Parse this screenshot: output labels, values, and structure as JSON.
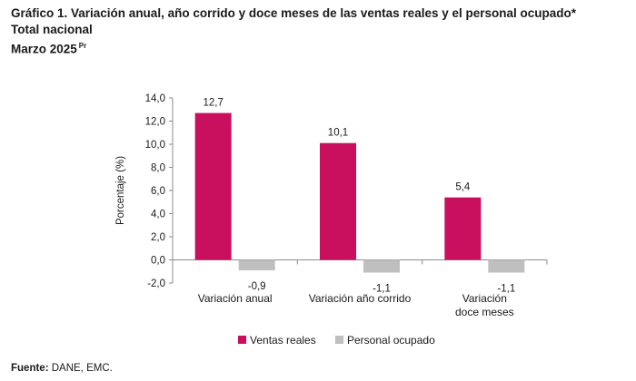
{
  "header": {
    "title": "Gráfico 1. Variación anual, año corrido y doce meses de las ventas reales y el personal ocupado*",
    "subtitle": "Total nacional",
    "period": "Marzo 2025",
    "period_sup": "Pr"
  },
  "footer": {
    "source_label": "Fuente:",
    "source_text": " DANE, EMC."
  },
  "chart_data": {
    "type": "bar",
    "categories": [
      [
        "Variación anual"
      ],
      [
        "Variación año corrido"
      ],
      [
        "Variación",
        "doce meses"
      ]
    ],
    "series": [
      {
        "name": "Ventas reales",
        "color": "#c8105e",
        "values": [
          12.7,
          10.1,
          5.4
        ],
        "labels": [
          "12,7",
          "10,1",
          "5,4"
        ]
      },
      {
        "name": "Personal ocupado",
        "color": "#bfbfbf",
        "values": [
          -0.9,
          -1.1,
          -1.1
        ],
        "labels": [
          "-0,9",
          "-1,1",
          "-1,1"
        ]
      }
    ],
    "ylabel": "Porcentaje (%)",
    "ylim": [
      -2.0,
      14.0
    ],
    "yticks": [
      14.0,
      12.0,
      10.0,
      8.0,
      6.0,
      4.0,
      2.0,
      0.0,
      -2.0
    ],
    "ytick_labels": [
      "14,0",
      "12,0",
      "10,0",
      "8,0",
      "6,0",
      "4,0",
      "2,0",
      "0,0",
      "-2,0"
    ],
    "legend_position": "bottom",
    "grid": false
  }
}
